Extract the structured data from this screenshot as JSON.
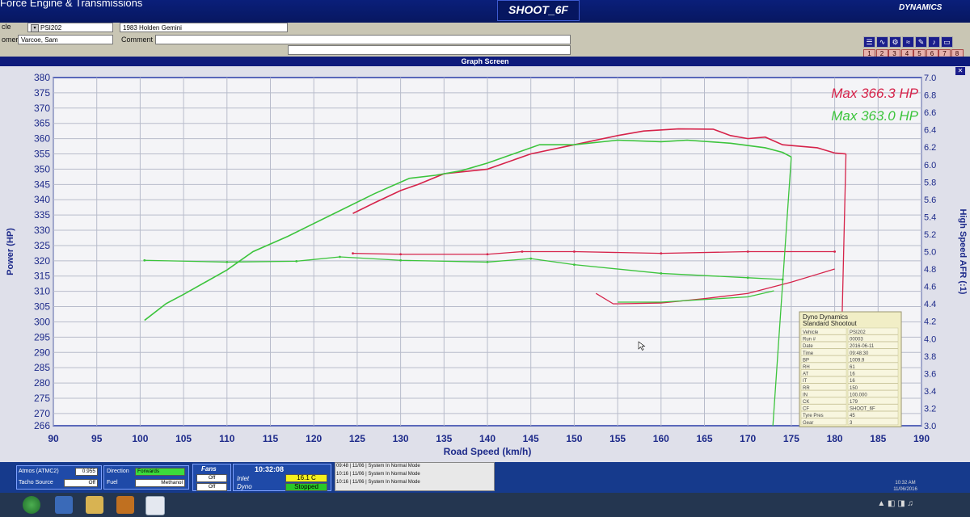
{
  "window": {
    "title": "Force Engine & Transmissions",
    "center_label": "SHOOT_6F",
    "brand": "DYNAMICS",
    "graph_screen_title": "Graph Screen"
  },
  "info": {
    "vehicle_label": "cle",
    "vehicle_id": "PSI202",
    "vehicle_desc": "1983 Holden Gemini",
    "customer_label": "omer",
    "customer_value": "Varcoe, Sam",
    "comment_label": "Comment",
    "comment_value": ""
  },
  "toolbar": {
    "page_buttons": [
      "1",
      "2",
      "3",
      "4",
      "5",
      "6",
      "7",
      "8"
    ]
  },
  "chart_data": {
    "type": "line",
    "xlabel": "Road Speed (km/h)",
    "ylabel": "Power (HP)",
    "y2label": "High Speed AFR (:1)",
    "xlim": [
      90,
      190
    ],
    "ylim": [
      266,
      380
    ],
    "y2lim": [
      3.0,
      7.0
    ],
    "x_ticks": [
      90,
      95,
      100,
      105,
      110,
      115,
      120,
      125,
      130,
      135,
      140,
      145,
      150,
      155,
      160,
      165,
      170,
      175,
      180,
      185,
      190
    ],
    "y_ticks": [
      266,
      270,
      275,
      280,
      285,
      290,
      295,
      300,
      305,
      310,
      315,
      320,
      325,
      330,
      335,
      340,
      345,
      350,
      355,
      360,
      365,
      370,
      375,
      380
    ],
    "y2_ticks": [
      "3.0",
      "3.2",
      "3.4",
      "3.6",
      "3.8",
      "4.0",
      "4.2",
      "4.4",
      "4.6",
      "4.8",
      "5.0",
      "5.2",
      "5.4",
      "5.6",
      "5.8",
      "6.0",
      "6.2",
      "6.4",
      "6.6",
      "6.8",
      "7.0"
    ],
    "legend": [
      {
        "text": "Max 366.3 HP",
        "color": "#d6234a"
      },
      {
        "text": "Max 363.0 HP",
        "color": "#3cc43c"
      }
    ],
    "series": [
      {
        "color": "#d6234a",
        "power": [
          [
            124.5,
            335.5
          ],
          [
            127,
            339
          ],
          [
            130,
            343
          ],
          [
            132,
            345
          ],
          [
            135,
            348.5
          ],
          [
            140,
            350
          ],
          [
            145,
            355
          ],
          [
            150,
            358
          ],
          [
            155,
            361
          ],
          [
            158,
            362.5
          ],
          [
            162,
            363.2
          ],
          [
            166,
            363.1
          ],
          [
            168,
            361
          ],
          [
            170,
            360
          ],
          [
            172,
            360.5
          ],
          [
            174,
            358
          ],
          [
            178,
            357
          ],
          [
            180,
            355.3
          ],
          [
            181.3,
            355
          ]
        ],
        "afr": [
          [
            124.5,
            4.98
          ],
          [
            130,
            4.97
          ],
          [
            140,
            4.97
          ],
          [
            144,
            5.0
          ],
          [
            150,
            5.0
          ],
          [
            160,
            4.98
          ],
          [
            170,
            5.0
          ],
          [
            180,
            5.0
          ]
        ],
        "afr_decel": [
          [
            152.5,
            4.52
          ],
          [
            154.5,
            4.4
          ],
          [
            160,
            4.41
          ],
          [
            165,
            4.46
          ],
          [
            170,
            4.52
          ],
          [
            175,
            4.65
          ],
          [
            180,
            4.8
          ]
        ]
      },
      {
        "color": "#3cc43c",
        "power": [
          [
            100.5,
            300.5
          ],
          [
            103,
            306
          ],
          [
            105,
            309
          ],
          [
            110,
            317
          ],
          [
            113,
            323
          ],
          [
            117,
            328
          ],
          [
            122,
            335
          ],
          [
            127,
            342
          ],
          [
            131,
            347
          ],
          [
            134,
            348
          ],
          [
            137,
            349.5
          ],
          [
            140,
            352
          ],
          [
            143,
            355
          ],
          [
            146,
            358
          ],
          [
            150,
            358
          ],
          [
            155,
            359.5
          ],
          [
            160,
            359
          ],
          [
            163,
            359.5
          ],
          [
            168,
            358.5
          ],
          [
            172,
            357
          ],
          [
            174,
            355.5
          ],
          [
            175,
            354
          ]
        ],
        "afr": [
          [
            100.5,
            4.9
          ],
          [
            110,
            4.88
          ],
          [
            118,
            4.89
          ],
          [
            123,
            4.94
          ],
          [
            130,
            4.9
          ],
          [
            140,
            4.88
          ],
          [
            145,
            4.92
          ],
          [
            150,
            4.85
          ],
          [
            160,
            4.75
          ],
          [
            170,
            4.7
          ],
          [
            174,
            4.68
          ]
        ],
        "afr_decel": [
          [
            155,
            4.42
          ],
          [
            160,
            4.42
          ],
          [
            165,
            4.45
          ],
          [
            170,
            4.48
          ],
          [
            173,
            4.55
          ]
        ]
      }
    ]
  },
  "results_box": {
    "title1": "Dyno Dynamics",
    "title2": "Standard Shootout",
    "rows": [
      [
        "Vehicle",
        "PSI202"
      ],
      [
        "Run #",
        "00003"
      ],
      [
        "Date",
        "2016-06-11"
      ],
      [
        "Time",
        "09:48:30"
      ],
      [
        "BP",
        "1009.9"
      ],
      [
        "RH",
        "61"
      ],
      [
        "AT",
        "16"
      ],
      [
        "IT",
        "16"
      ],
      [
        "RR",
        "150"
      ],
      [
        "IN",
        "100.000"
      ],
      [
        "CK",
        "179"
      ],
      [
        "CF",
        "SHOOT_6F"
      ],
      [
        "Tyre Pres",
        "45"
      ],
      [
        "Gear",
        "3"
      ]
    ]
  },
  "controls": {
    "atmos_label": "Atmos (ATMC2)",
    "atmos_value": "0.955",
    "tacho_label": "Tacho Source",
    "tacho_value": "Off",
    "direction_label": "Direction",
    "direction_value": "Forwards",
    "fuel_label": "Fuel",
    "fuel_value": "Methanol",
    "fans_label": "Fans",
    "fans_inlet": "Off",
    "fans_dyno": "Off",
    "time": "10:32:08",
    "inlet_label": "Inlet",
    "dyno_label": "Dyno",
    "inlet_temp": "16.1 C",
    "status": "Stopped",
    "log": [
      "09:48 | 11/06 | System In Normal Mode",
      "10:16 | 11/06 | System In Normal Mode",
      "10:16 | 11/06 | System In Normal Mode"
    ]
  },
  "taskbar": {
    "clock_time": "10:32 AM",
    "clock_date": "11/06/2016"
  }
}
